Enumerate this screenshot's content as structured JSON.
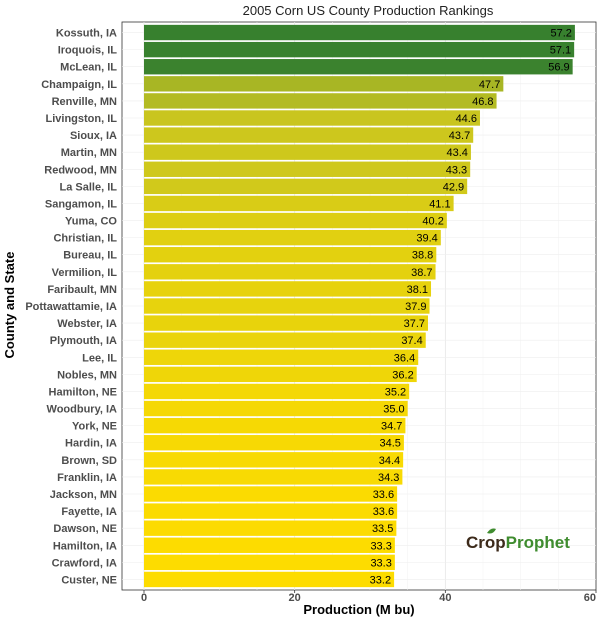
{
  "chart_data": {
    "type": "bar",
    "orientation": "horizontal",
    "title": "2005 Corn US County Production Rankings",
    "xlabel": "Production (M bu)",
    "ylabel": "County and State",
    "xlim": [
      0,
      60
    ],
    "xticks": [
      0,
      20,
      40,
      60
    ],
    "grid": true,
    "categories": [
      "Kossuth, IA",
      "Iroquois, IL",
      "McLean, IL",
      "Champaign, IL",
      "Renville, MN",
      "Livingston, IL",
      "Sioux, IA",
      "Martin, MN",
      "Redwood, MN",
      "La Salle, IL",
      "Sangamon, IL",
      "Yuma, CO",
      "Christian, IL",
      "Bureau, IL",
      "Vermilion, IL",
      "Faribault, MN",
      "Pottawattamie, IA",
      "Webster, IA",
      "Plymouth, IA",
      "Lee, IL",
      "Nobles, MN",
      "Hamilton, NE",
      "Woodbury, IA",
      "York, NE",
      "Hardin, IA",
      "Brown, SD",
      "Franklin, IA",
      "Jackson, MN",
      "Fayette, IA",
      "Dawson, NE",
      "Hamilton, IA",
      "Crawford, IA",
      "Custer, NE"
    ],
    "values": [
      57.2,
      57.1,
      56.9,
      47.7,
      46.8,
      44.6,
      43.7,
      43.4,
      43.3,
      42.9,
      41.1,
      40.2,
      39.4,
      38.8,
      38.7,
      38.1,
      37.9,
      37.7,
      37.4,
      36.4,
      36.2,
      35.2,
      35.0,
      34.7,
      34.5,
      34.4,
      34.3,
      33.6,
      33.6,
      33.5,
      33.3,
      33.3,
      33.2
    ],
    "value_labels": [
      "57.2",
      "57.1",
      "56.9",
      "47.7",
      "46.8",
      "44.6",
      "43.7",
      "43.4",
      "43.3",
      "42.9",
      "41.1",
      "40.2",
      "39.4",
      "38.8",
      "38.7",
      "38.1",
      "37.9",
      "37.7",
      "37.4",
      "36.4",
      "36.2",
      "35.2",
      "35.0",
      "34.7",
      "34.5",
      "34.4",
      "34.3",
      "33.6",
      "33.6",
      "33.5",
      "33.3",
      "33.3",
      "33.2"
    ],
    "colors": {
      "high": "#37802e",
      "mid": "#c6c421",
      "low": "#fddc00",
      "brand_dark": "#3c2a1a",
      "brand_green": "#3f8c2f"
    }
  },
  "branding": {
    "logo_part1": "Crop",
    "logo_part2": "Prophet"
  }
}
